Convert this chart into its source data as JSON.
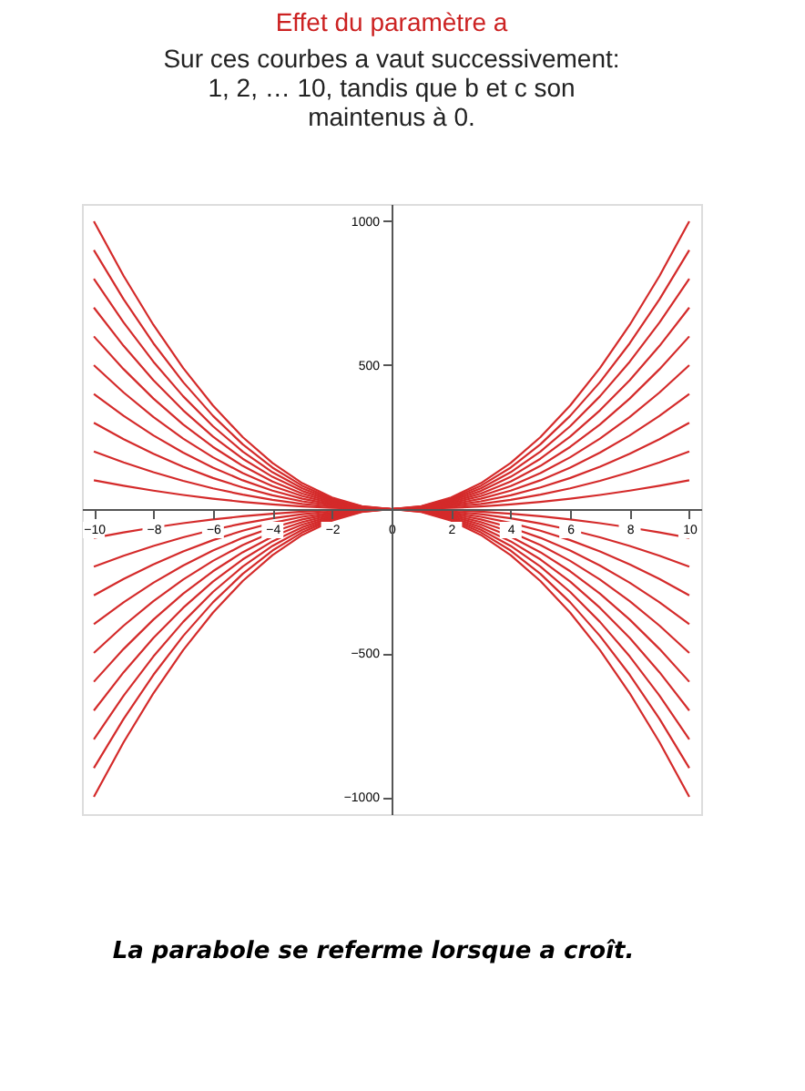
{
  "chart_data": {
    "type": "line",
    "title": "Effet du paramètre a",
    "subtitle": [
      "Sur ces courbes a vaut successivement:",
      "1, 2,  … 10, tandis que b et c son",
      "maintenus à 0."
    ],
    "x": [
      -10,
      -9,
      -8,
      -7,
      -6,
      -5,
      -4,
      -3,
      -2,
      -1,
      0,
      1,
      2,
      3,
      4,
      5,
      6,
      7,
      8,
      9,
      10
    ],
    "series": [
      {
        "color": "#d42a2a",
        "values": [
          100,
          81,
          64,
          49,
          36,
          25,
          16,
          9,
          4,
          1,
          0,
          1,
          4,
          9,
          16,
          25,
          36,
          49,
          64,
          81,
          100
        ]
      },
      {
        "color": "#d42a2a",
        "values": [
          200,
          162,
          128,
          98,
          72,
          50,
          32,
          18,
          8,
          2,
          0,
          2,
          8,
          18,
          32,
          50,
          72,
          98,
          128,
          162,
          200
        ]
      },
      {
        "color": "#d42a2a",
        "values": [
          300,
          243,
          192,
          147,
          108,
          75,
          48,
          27,
          12,
          3,
          0,
          3,
          12,
          27,
          48,
          75,
          108,
          147,
          192,
          243,
          300
        ]
      },
      {
        "color": "#d42a2a",
        "values": [
          400,
          324,
          256,
          196,
          144,
          100,
          64,
          36,
          16,
          4,
          0,
          4,
          16,
          36,
          64,
          100,
          144,
          196,
          256,
          324,
          400
        ]
      },
      {
        "color": "#d42a2a",
        "values": [
          500,
          405,
          320,
          245,
          180,
          125,
          80,
          45,
          20,
          5,
          0,
          5,
          20,
          45,
          80,
          125,
          180,
          245,
          320,
          405,
          500
        ]
      },
      {
        "color": "#d42a2a",
        "values": [
          600,
          486,
          384,
          294,
          216,
          150,
          96,
          54,
          24,
          6,
          0,
          6,
          24,
          54,
          96,
          150,
          216,
          294,
          384,
          486,
          600
        ]
      },
      {
        "color": "#d42a2a",
        "values": [
          700,
          567,
          448,
          343,
          252,
          175,
          112,
          63,
          28,
          7,
          0,
          7,
          28,
          63,
          112,
          175,
          252,
          343,
          448,
          567,
          700
        ]
      },
      {
        "color": "#d42a2a",
        "values": [
          800,
          648,
          512,
          392,
          288,
          200,
          128,
          72,
          32,
          8,
          0,
          8,
          32,
          72,
          128,
          200,
          288,
          392,
          512,
          648,
          800
        ]
      },
      {
        "color": "#d42a2a",
        "values": [
          900,
          729,
          576,
          441,
          324,
          225,
          144,
          81,
          36,
          9,
          0,
          9,
          36,
          81,
          144,
          225,
          324,
          441,
          576,
          729,
          900
        ]
      },
      {
        "color": "#d42a2a",
        "values": [
          1000,
          810,
          640,
          490,
          360,
          250,
          160,
          90,
          40,
          10,
          0,
          10,
          40,
          90,
          160,
          250,
          360,
          490,
          640,
          810,
          1000
        ]
      },
      {
        "color": "#d42a2a",
        "values": [
          -100,
          -81,
          -64,
          -49,
          -36,
          -25,
          -16,
          -9,
          -4,
          -1,
          0,
          -1,
          -4,
          -9,
          -16,
          -25,
          -36,
          -49,
          -64,
          -81,
          -100
        ]
      },
      {
        "color": "#d42a2a",
        "values": [
          -200,
          -162,
          -128,
          -98,
          -72,
          -50,
          -32,
          -18,
          -8,
          -2,
          0,
          -2,
          -8,
          -18,
          -32,
          -50,
          -72,
          -98,
          -128,
          -162,
          -200
        ]
      },
      {
        "color": "#d42a2a",
        "values": [
          -300,
          -243,
          -192,
          -147,
          -108,
          -75,
          -48,
          -27,
          -12,
          -3,
          0,
          -3,
          -12,
          -27,
          -48,
          -75,
          -108,
          -147,
          -192,
          -243,
          -300
        ]
      },
      {
        "color": "#d42a2a",
        "values": [
          -400,
          -324,
          -256,
          -196,
          -144,
          -100,
          -64,
          -36,
          -16,
          -4,
          0,
          -4,
          -16,
          -36,
          -64,
          -100,
          -144,
          -196,
          -256,
          -324,
          -400
        ]
      },
      {
        "color": "#d42a2a",
        "values": [
          -500,
          -405,
          -320,
          -245,
          -180,
          -125,
          -80,
          -45,
          -20,
          -5,
          0,
          -5,
          -20,
          -45,
          -80,
          -125,
          -180,
          -245,
          -320,
          -405,
          -500
        ]
      },
      {
        "color": "#d42a2a",
        "values": [
          -600,
          -486,
          -384,
          -294,
          -216,
          -150,
          -96,
          -54,
          -24,
          -6,
          0,
          -6,
          -24,
          -54,
          -96,
          -150,
          -216,
          -294,
          -384,
          -486,
          -600
        ]
      },
      {
        "color": "#d42a2a",
        "values": [
          -700,
          -567,
          -448,
          -343,
          -252,
          -175,
          -112,
          -63,
          -28,
          -7,
          0,
          -7,
          -28,
          -63,
          -112,
          -175,
          -252,
          -343,
          -448,
          -567,
          -700
        ]
      },
      {
        "color": "#d42a2a",
        "values": [
          -800,
          -648,
          -512,
          -392,
          -288,
          -200,
          -128,
          -72,
          -32,
          -8,
          0,
          -8,
          -32,
          -72,
          -128,
          -200,
          -288,
          -392,
          -512,
          -648,
          -800
        ]
      },
      {
        "color": "#d42a2a",
        "values": [
          -900,
          -729,
          -576,
          -441,
          -324,
          -225,
          -144,
          -81,
          -36,
          -9,
          0,
          -9,
          -36,
          -81,
          -144,
          -225,
          -324,
          -441,
          -576,
          -729,
          -900
        ]
      },
      {
        "color": "#d42a2a",
        "values": [
          -1000,
          -810,
          -640,
          -490,
          -360,
          -250,
          -160,
          -90,
          -40,
          -10,
          0,
          -10,
          -40,
          -90,
          -160,
          -250,
          -360,
          -490,
          -640,
          -810,
          -1000
        ]
      }
    ],
    "xlim": [
      -10.4,
      10.4
    ],
    "ylim": [
      -1060,
      1060
    ],
    "xticks": [
      -10,
      -8,
      -6,
      -4,
      -2,
      0,
      2,
      4,
      6,
      8,
      10
    ],
    "yticks": [
      -1000,
      -500,
      500,
      1000
    ],
    "grid": false,
    "legend": false,
    "marker": "none",
    "line_style": "solid",
    "annotations": [
      "La parabole se referme lorsque a croît."
    ]
  }
}
